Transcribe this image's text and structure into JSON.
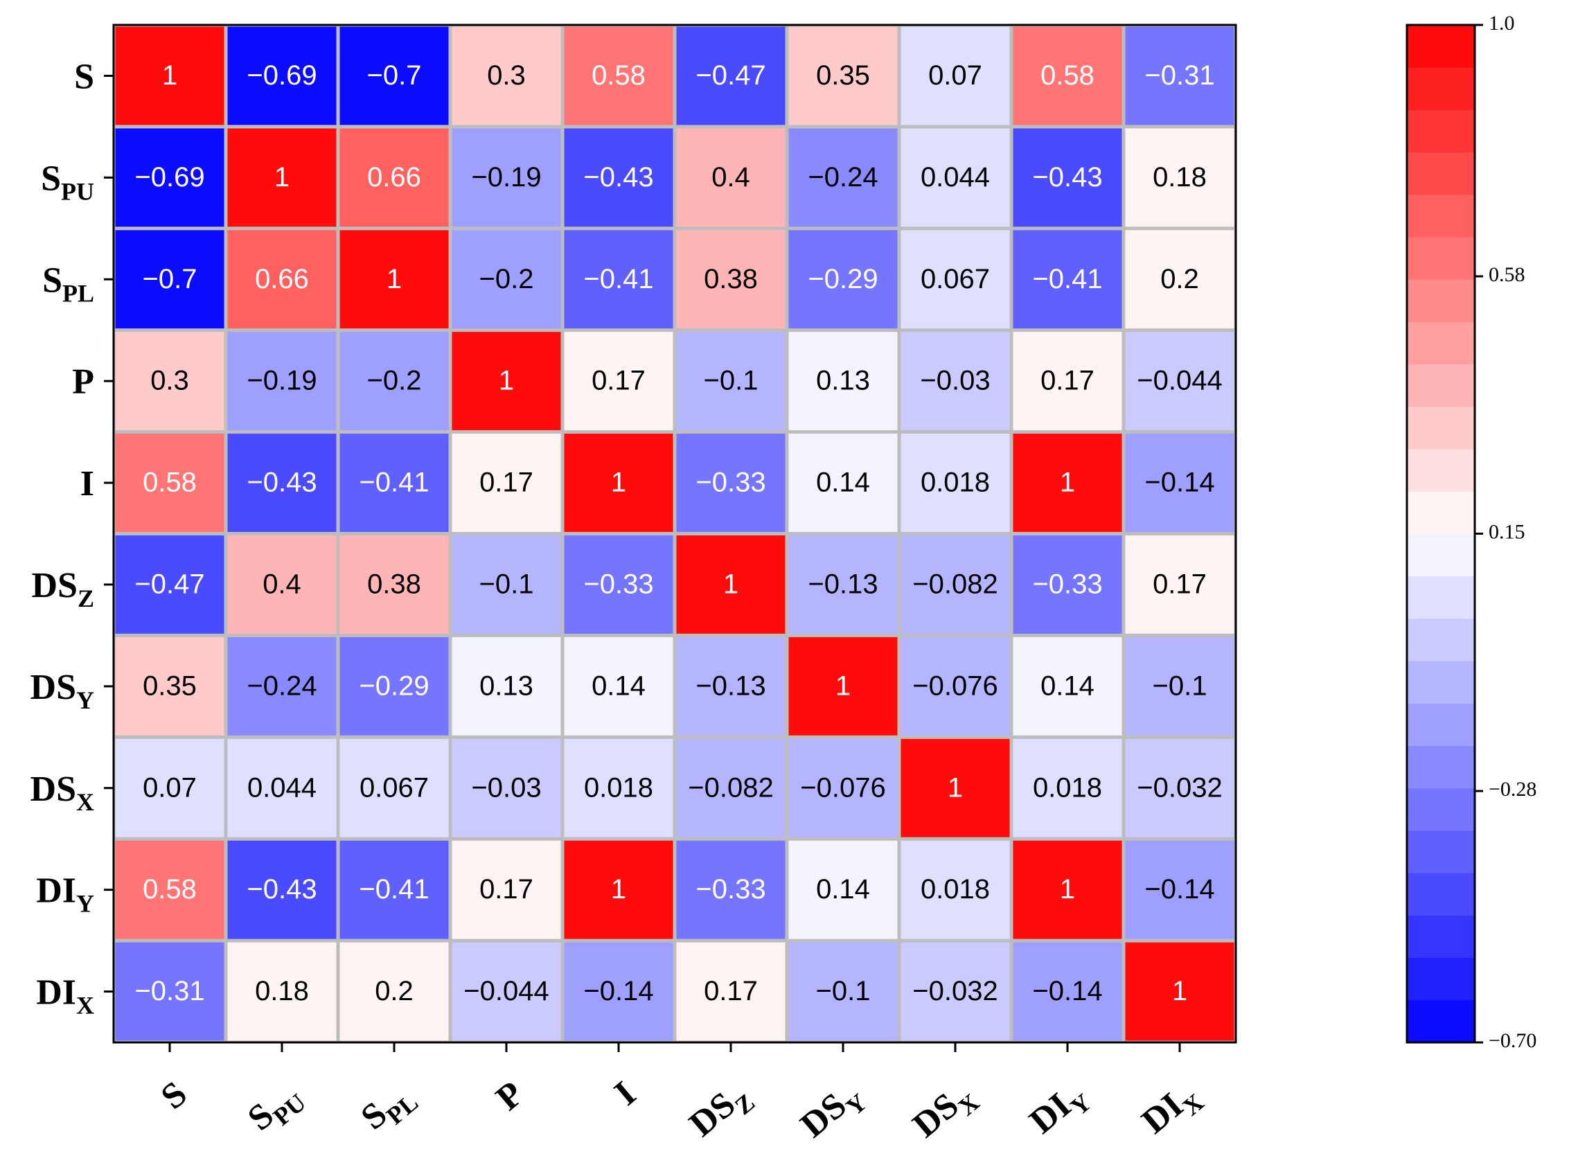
{
  "chart_data": {
    "type": "heatmap",
    "labels": [
      {
        "text": "S"
      },
      {
        "text": "S",
        "sub": "PU"
      },
      {
        "text": "S",
        "sub": "PL"
      },
      {
        "text": "P"
      },
      {
        "text": "I"
      },
      {
        "text": "DS",
        "sub": "Z"
      },
      {
        "text": "DS",
        "sub": "Y"
      },
      {
        "text": "DS",
        "sub": "X"
      },
      {
        "text": "DI",
        "sub": "Y"
      },
      {
        "text": "DI",
        "sub": "X"
      }
    ],
    "values": [
      [
        1,
        -0.69,
        -0.7,
        0.3,
        0.58,
        -0.47,
        0.35,
        0.07,
        0.58,
        -0.31
      ],
      [
        -0.69,
        1,
        0.66,
        -0.19,
        -0.43,
        0.4,
        -0.24,
        0.044,
        -0.43,
        0.18
      ],
      [
        -0.7,
        0.66,
        1,
        -0.2,
        -0.41,
        0.38,
        -0.29,
        0.067,
        -0.41,
        0.2
      ],
      [
        0.3,
        -0.19,
        -0.2,
        1,
        0.17,
        -0.1,
        0.13,
        -0.03,
        0.17,
        -0.044
      ],
      [
        0.58,
        -0.43,
        -0.41,
        0.17,
        1,
        -0.33,
        0.14,
        0.018,
        1,
        -0.14
      ],
      [
        -0.47,
        0.4,
        0.38,
        -0.1,
        -0.33,
        1,
        -0.13,
        -0.082,
        -0.33,
        0.17
      ],
      [
        0.35,
        -0.24,
        -0.29,
        0.13,
        0.14,
        -0.13,
        1,
        -0.076,
        0.14,
        -0.1
      ],
      [
        0.07,
        0.044,
        0.067,
        -0.03,
        0.018,
        -0.082,
        -0.076,
        1,
        0.018,
        -0.032
      ],
      [
        0.58,
        -0.43,
        -0.41,
        0.17,
        1,
        -0.33,
        0.14,
        0.018,
        1,
        -0.14
      ],
      [
        -0.31,
        0.18,
        0.2,
        -0.044,
        -0.14,
        0.17,
        -0.1,
        -0.032,
        -0.14,
        1
      ]
    ],
    "value_labels": [
      [
        "1",
        "−0.69",
        "−0.7",
        "0.3",
        "0.58",
        "−0.47",
        "0.35",
        "0.07",
        "0.58",
        "−0.31"
      ],
      [
        "−0.69",
        "1",
        "0.66",
        "−0.19",
        "−0.43",
        "0.4",
        "−0.24",
        "0.044",
        "−0.43",
        "0.18"
      ],
      [
        "−0.7",
        "0.66",
        "1",
        "−0.2",
        "−0.41",
        "0.38",
        "−0.29",
        "0.067",
        "−0.41",
        "0.2"
      ],
      [
        "0.3",
        "−0.19",
        "−0.2",
        "1",
        "0.17",
        "−0.1",
        "0.13",
        "−0.03",
        "0.17",
        "−0.044"
      ],
      [
        "0.58",
        "−0.43",
        "−0.41",
        "0.17",
        "1",
        "−0.33",
        "0.14",
        "0.018",
        "1",
        "−0.14"
      ],
      [
        "−0.47",
        "0.4",
        "0.38",
        "−0.1",
        "−0.33",
        "1",
        "−0.13",
        "−0.082",
        "−0.33",
        "0.17"
      ],
      [
        "0.35",
        "−0.24",
        "−0.29",
        "0.13",
        "0.14",
        "−0.13",
        "1",
        "−0.076",
        "0.14",
        "−0.1"
      ],
      [
        "0.07",
        "0.044",
        "0.067",
        "−0.03",
        "0.018",
        "−0.082",
        "−0.076",
        "1",
        "0.018",
        "−0.032"
      ],
      [
        "0.58",
        "−0.43",
        "−0.41",
        "0.17",
        "1",
        "−0.33",
        "0.14",
        "0.018",
        "1",
        "−0.14"
      ],
      [
        "−0.31",
        "0.18",
        "0.2",
        "−0.044",
        "−0.14",
        "0.17",
        "−0.1",
        "−0.032",
        "−0.14",
        "1"
      ]
    ],
    "colormap": [
      "#0000ff",
      "#ffffff",
      "#ff0000"
    ],
    "colorbar_levels": 24,
    "clim": [
      -0.7,
      1
    ],
    "cticks": [
      {
        "value": 1,
        "label": "1.0"
      },
      0.58,
      0.15,
      {
        "value": -0.28,
        "label": "−0.28"
      },
      {
        "value": -0.7,
        "label": "−0.70"
      }
    ]
  }
}
